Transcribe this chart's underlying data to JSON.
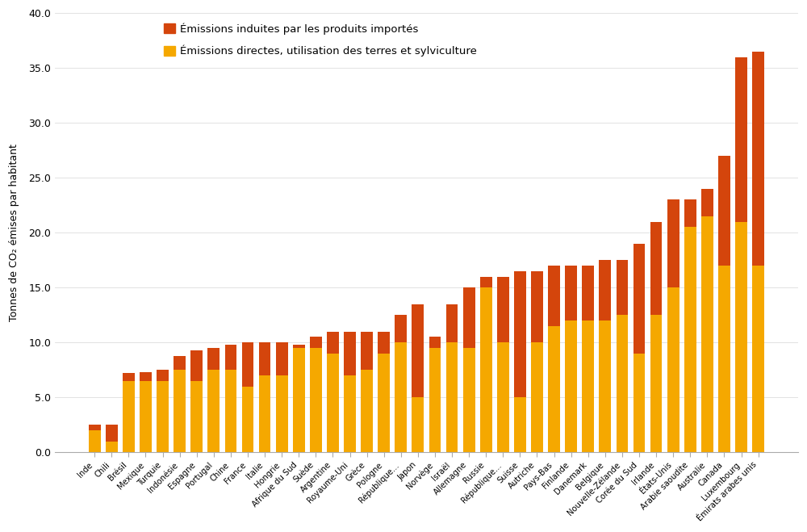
{
  "countries": [
    "Inde",
    "Chili",
    "Brésil",
    "Mexique",
    "Turquie",
    "Indonésie",
    "Espagne",
    "Portugal",
    "Chine",
    "France",
    "Italie",
    "Hongrie",
    "Afrique du Sud",
    "Suède",
    "Argentine",
    "Royaume-Uni",
    "Grèce",
    "Pologne",
    "République...",
    "Japon",
    "Norvège",
    "Israël",
    "Allemagne",
    "Russie",
    "République...",
    "Suisse",
    "Autriche",
    "Pays-Bas",
    "Finlande",
    "Danemark",
    "Belgique",
    "Nouvelle-Zélande",
    "Corée du Sud",
    "Irlande",
    "États-Unis",
    "Arabie saoudite",
    "Australie",
    "Canada",
    "Luxembourg",
    "Émirats arabes unis"
  ],
  "direct": [
    2.0,
    1.0,
    6.5,
    6.5,
    6.5,
    7.5,
    6.5,
    7.5,
    7.5,
    6.0,
    7.0,
    7.0,
    9.5,
    9.5,
    9.0,
    7.0,
    7.5,
    9.0,
    10.0,
    5.0,
    9.5,
    10.0,
    9.5,
    15.0,
    10.0,
    5.0,
    10.0,
    11.5,
    12.0,
    12.0,
    12.0,
    12.5,
    9.0,
    12.5,
    15.0,
    20.5,
    21.5,
    17.0,
    21.0,
    17.0
  ],
  "imported": [
    0.5,
    1.5,
    0.7,
    0.8,
    1.0,
    1.3,
    2.8,
    2.0,
    2.3,
    4.0,
    3.0,
    3.0,
    0.3,
    1.0,
    2.0,
    4.0,
    3.5,
    2.0,
    2.5,
    8.5,
    1.0,
    3.5,
    5.5,
    1.0,
    6.0,
    11.5,
    6.5,
    5.5,
    5.0,
    5.0,
    5.5,
    5.0,
    10.0,
    8.5,
    8.0,
    2.5,
    2.5,
    10.0,
    15.0,
    19.5
  ],
  "direct_color": "#F5A800",
  "imported_color": "#D4450C",
  "ylabel": "Tonnes de CO₂ émises par habitant",
  "ylim": [
    0,
    40
  ],
  "yticks": [
    0.0,
    5.0,
    10.0,
    15.0,
    20.0,
    25.0,
    30.0,
    35.0,
    40.0
  ],
  "legend_direct": "Émissions directes, utilisation des terres et sylviculture",
  "legend_imported": "Émissions induites par les produits importés",
  "background_color": "#FFFFFF"
}
